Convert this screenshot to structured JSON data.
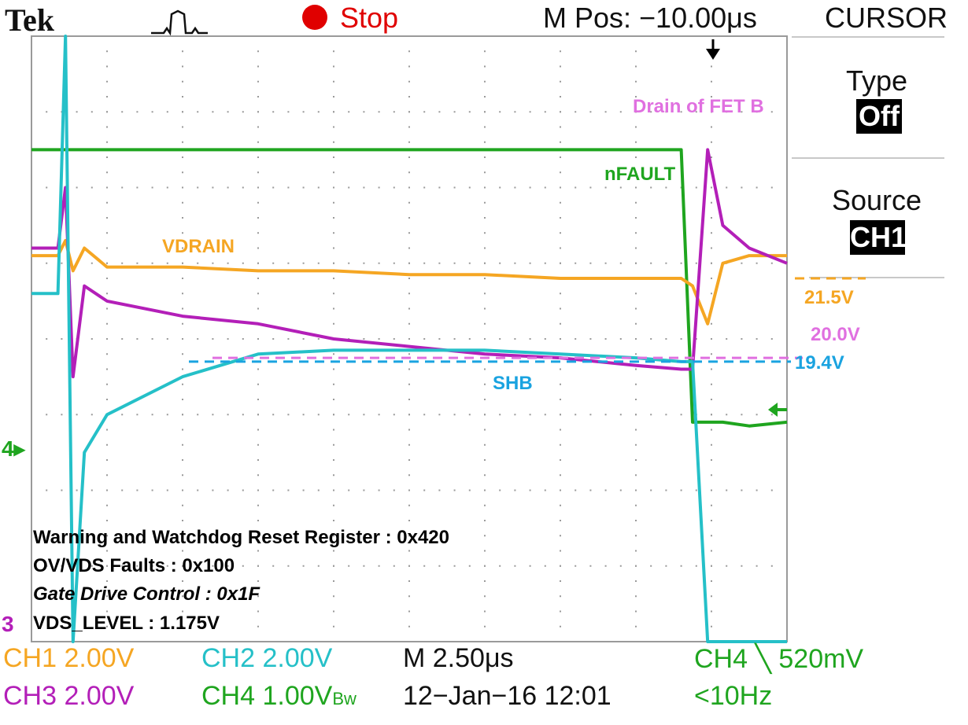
{
  "header": {
    "brand": "Tek",
    "acq_status": "Stop",
    "mpos": "M Pos: −10.00μs"
  },
  "menu": {
    "title": "CURSOR",
    "type_label": "Type",
    "type_value": "Off",
    "source_label": "Source",
    "source_value": "CH1"
  },
  "colors": {
    "ch1": "#f5a623",
    "ch2": "#25c0c8",
    "ch3": "#b31fb8",
    "ch4": "#1fa51f",
    "shb_annotation": "#1aa3e0",
    "fet_annotation": "#e070e0"
  },
  "annotations": {
    "nfault": "nFAULT",
    "vdrain": "VDRAIN",
    "drain_fet_b": "Drain of FET B",
    "shb": "SHB",
    "level_vdrain": "21.5V",
    "level_drain": "20.0V",
    "level_shb": "19.4V"
  },
  "register_info": [
    "Warning and Watchdog Reset Register : 0x420",
    "OV/VDS Faults : 0x100",
    "Gate Drive Control : 0x1F",
    "VDS_LEVEL : 1.175V"
  ],
  "footer": {
    "ch1_scale": "CH1  2.00V",
    "ch2_scale": "CH2  2.00V",
    "ch3_scale": "CH3  2.00V",
    "ch4_scale": "CH4  1.00V",
    "ch4_bw": "Bw",
    "timebase": "M 2.50μs",
    "date": "12−Jan−16 12:01",
    "trigger": "CH4 ╲ 520mV",
    "freq": "<10Hz"
  },
  "markers": {
    "ch4_ground": "4",
    "ch3_ground": "3"
  },
  "chart_data": {
    "type": "line",
    "xlabel": "",
    "ylabel": "",
    "x_units": "divisions",
    "y_units": "divisions",
    "xlim": [
      0,
      10
    ],
    "ylim": [
      -4,
      4
    ],
    "grid": true,
    "x": [
      0,
      0.35,
      0.45,
      0.55,
      0.7,
      1.0,
      2.0,
      3.0,
      4.0,
      5.0,
      6.0,
      7.0,
      8.0,
      8.6,
      8.75,
      8.95,
      9.15,
      9.5,
      10.0
    ],
    "series": [
      {
        "name": "nFAULT",
        "values": [
          2.5,
          2.5,
          2.5,
          2.5,
          2.5,
          2.5,
          2.5,
          2.5,
          2.5,
          2.5,
          2.5,
          2.5,
          2.5,
          2.5,
          -1.1,
          -1.1,
          -1.1,
          -1.15,
          -1.1
        ]
      },
      {
        "name": "VDRAIN",
        "values": [
          1.1,
          1.1,
          1.3,
          0.9,
          1.2,
          0.95,
          0.95,
          0.9,
          0.9,
          0.85,
          0.85,
          0.8,
          0.8,
          0.8,
          0.7,
          0.2,
          1.0,
          1.1,
          1.1
        ]
      },
      {
        "name": "Drain of FET B",
        "values": [
          1.2,
          1.2,
          2.0,
          -0.5,
          0.7,
          0.5,
          0.3,
          0.2,
          0.0,
          -0.1,
          -0.2,
          -0.25,
          -0.35,
          -0.4,
          -0.4,
          2.5,
          1.5,
          1.2,
          1.0
        ]
      },
      {
        "name": "SHB",
        "values": [
          0.6,
          0.6,
          4.0,
          -4.0,
          -1.5,
          -1.0,
          -0.5,
          -0.2,
          -0.15,
          -0.15,
          -0.15,
          -0.2,
          -0.25,
          -0.3,
          -0.3,
          -4.0,
          -4.0,
          -4.0,
          -4.0
        ]
      }
    ]
  }
}
